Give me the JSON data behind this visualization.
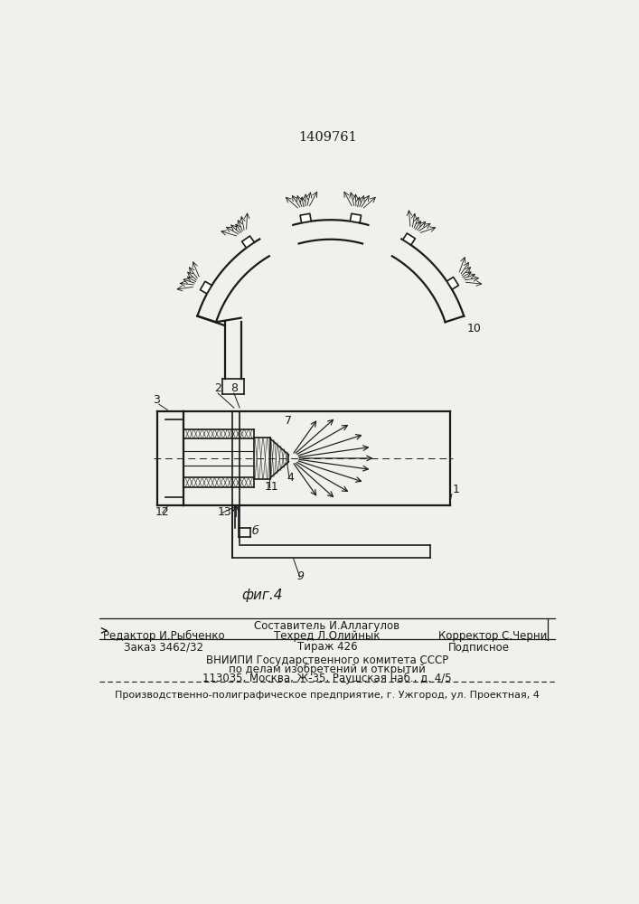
{
  "patent_number": "1409761",
  "fig_label": "фиг.4",
  "bg_color": "#f2f0ec",
  "line_color": "#1a1a1a",
  "label_10": "10",
  "label_3": "3",
  "label_2": "2",
  "label_8": "8",
  "label_7": "7",
  "label_4": "4",
  "label_11": "11",
  "label_12": "12",
  "label_13": "13",
  "label_1": "1",
  "label_6b": "б",
  "label_9": "9",
  "footer_sostav": "Составитель И.Аллагулов",
  "footer_red": "Редактор И.Рыбченко",
  "footer_teh": "Техред Л.Олийнык",
  "footer_korr": "Корректор С.Черни",
  "footer_order": "Заказ 3462/32",
  "footer_tirage": "Тираж 426",
  "footer_sub": "Подписное",
  "footer_vnipi1": "ВНИИПИ Государственного комитета СССР",
  "footer_vnipi2": "по делам изобретений и открытий",
  "footer_vnipi3": "113035, Москва, Ж-35, Раушская наб., д. 4/5",
  "footer_factory": "Производственно-полиграфическое предприятие, г. Ужгород, ул. Проектная, 4"
}
